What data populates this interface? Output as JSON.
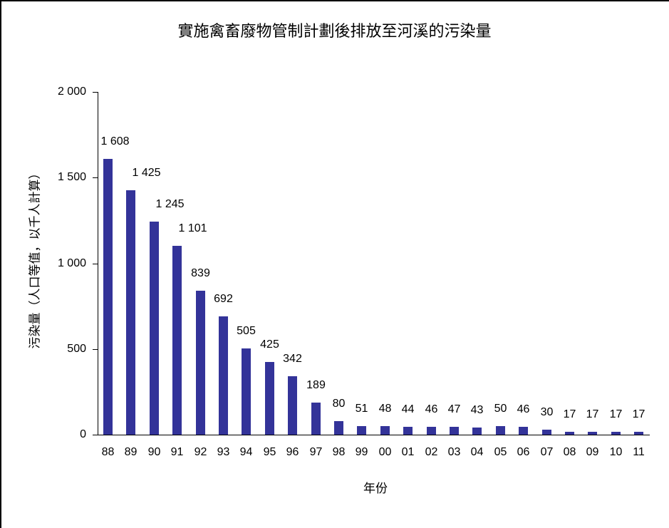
{
  "chart_data": {
    "type": "bar",
    "title": "實施禽畜廢物管制計劃後排放至河溪的污染量",
    "xlabel": "年份",
    "ylabel": "污染量（人口等值，以千人計算）",
    "categories": [
      "88",
      "89",
      "90",
      "91",
      "92",
      "93",
      "94",
      "95",
      "96",
      "97",
      "98",
      "99",
      "00",
      "01",
      "02",
      "03",
      "04",
      "05",
      "06",
      "07",
      "08",
      "09",
      "10",
      "11"
    ],
    "values": [
      1608,
      1425,
      1245,
      1101,
      839,
      692,
      505,
      425,
      342,
      189,
      80,
      51,
      48,
      44,
      46,
      47,
      43,
      50,
      46,
      30,
      17,
      17,
      17,
      17
    ],
    "value_labels": [
      "1 608",
      "1 425",
      "1 245",
      "1 101",
      "839",
      "692",
      "505",
      "425",
      "342",
      "189",
      "80",
      "51",
      "48",
      "44",
      "46",
      "47",
      "43",
      "50",
      "46",
      "30",
      "17",
      "17",
      "17",
      "17"
    ],
    "ylim": [
      0,
      2000
    ],
    "yticks": [
      0,
      500,
      1000,
      1500,
      2000
    ],
    "ytick_labels": [
      "0",
      "500",
      "1 000",
      "1 500",
      "2 000"
    ],
    "grid": false,
    "legend": null,
    "bar_color": "#333399"
  }
}
